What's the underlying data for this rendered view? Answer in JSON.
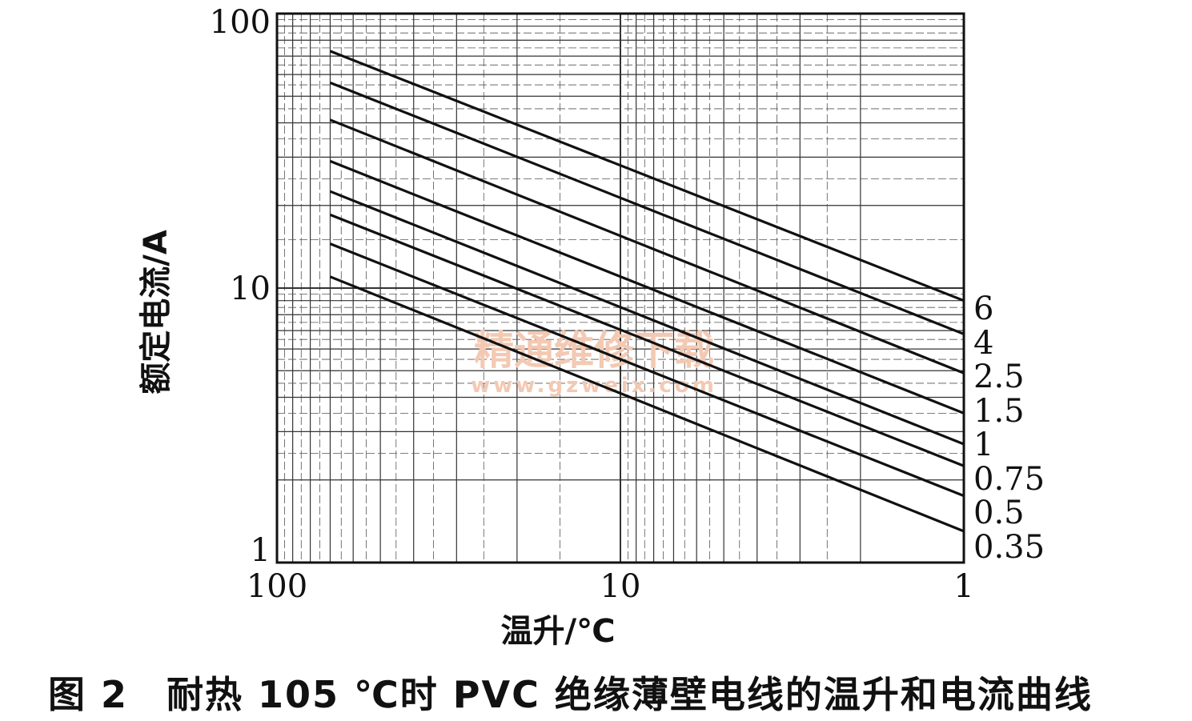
{
  "watermark": {
    "text": "精通维修下载",
    "url": "www.gzweix.com"
  },
  "caption": "图 2　耐热 105 ℃时 PVC 绝缘薄壁电线的温升和电流曲线",
  "chart_data": {
    "type": "line",
    "title": "",
    "xlabel": "温升/℃",
    "ylabel": "额定电流/A",
    "xscale": "log",
    "yscale": "log",
    "x_reversed": true,
    "xlim": [
      100,
      1
    ],
    "ylim": [
      1,
      100
    ],
    "x_ticks": [
      "100",
      "10",
      "1"
    ],
    "y_ticks": [
      "100",
      "10",
      "1"
    ],
    "grid": true,
    "legend": "series labels at right end of each line",
    "series": [
      {
        "name": "6",
        "x": [
          70,
          1
        ],
        "y": [
          73,
          9.0
        ]
      },
      {
        "name": "4",
        "x": [
          70,
          1
        ],
        "y": [
          56,
          6.8
        ]
      },
      {
        "name": "2.5",
        "x": [
          70,
          1
        ],
        "y": [
          41,
          4.9
        ]
      },
      {
        "name": "1.5",
        "x": [
          70,
          1
        ],
        "y": [
          29,
          3.5
        ]
      },
      {
        "name": "1",
        "x": [
          70,
          1
        ],
        "y": [
          22.5,
          2.7
        ]
      },
      {
        "name": "0.75",
        "x": [
          70,
          1
        ],
        "y": [
          18.5,
          2.25
        ]
      },
      {
        "name": "0.5",
        "x": [
          70,
          1
        ],
        "y": [
          14.5,
          1.75
        ]
      },
      {
        "name": "0.35",
        "x": [
          70,
          1
        ],
        "y": [
          11,
          1.3
        ]
      }
    ]
  }
}
